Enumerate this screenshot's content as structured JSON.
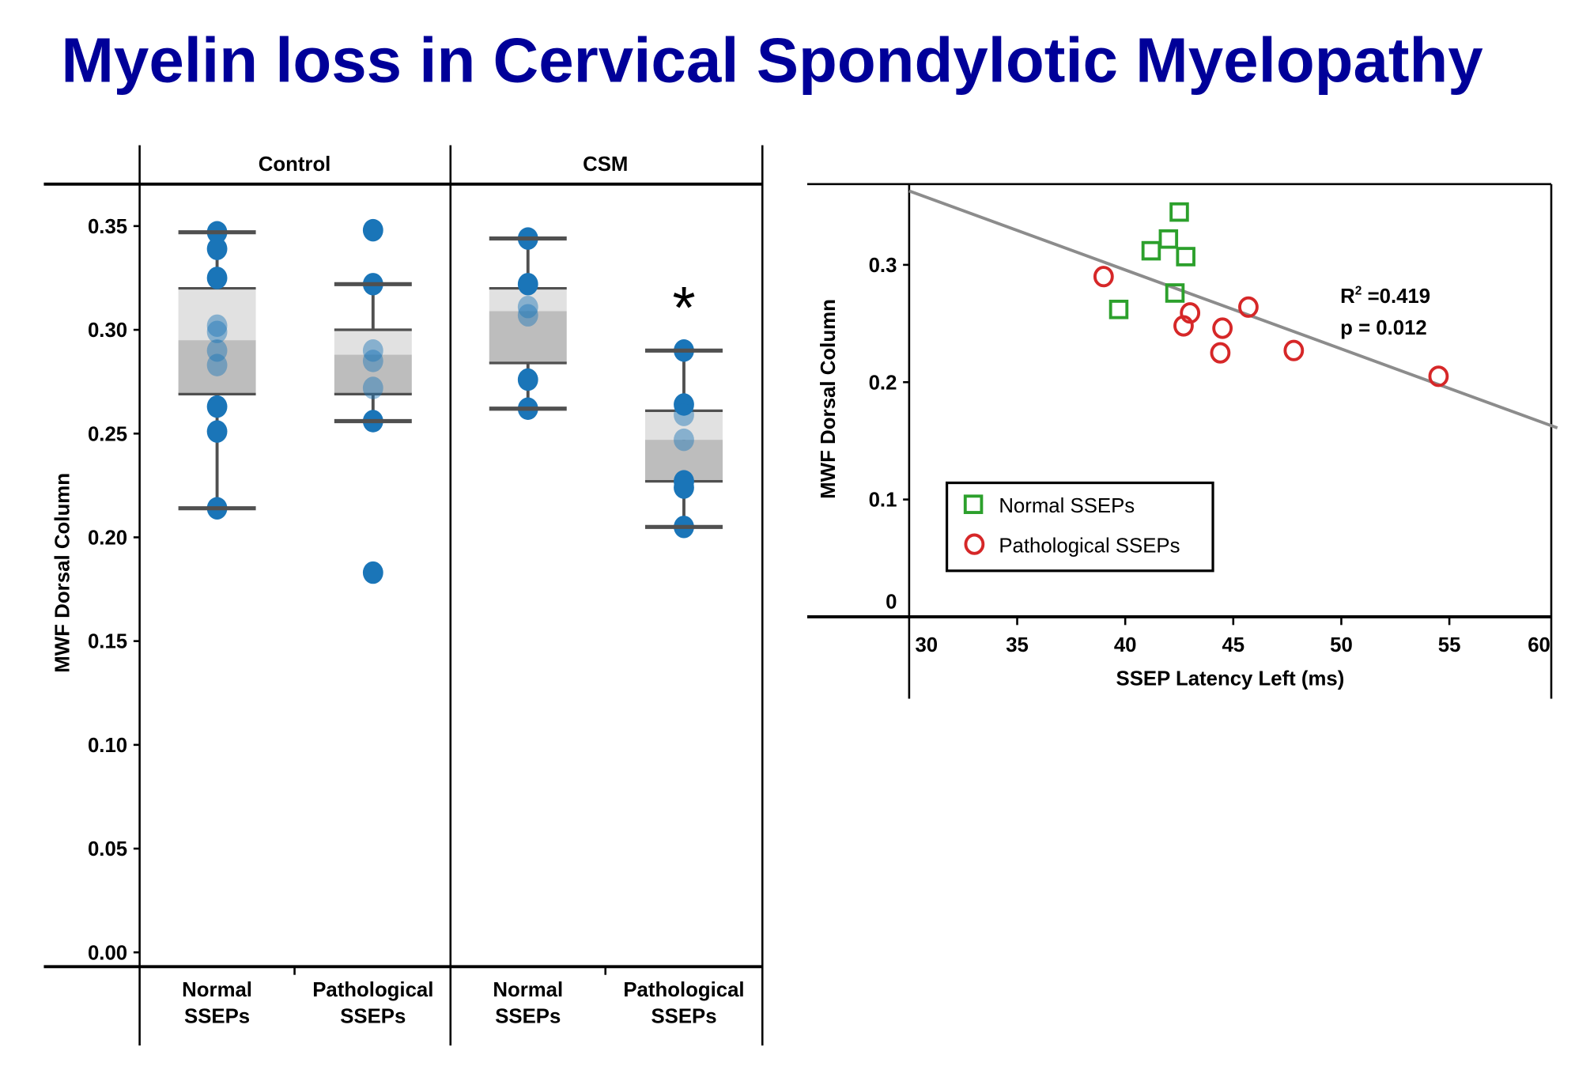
{
  "title": "Myelin loss in Cervical Spondylotic Myelopathy",
  "chart_data": [
    {
      "type": "box",
      "ylabel": "MWF Dorsal Column",
      "ylim": [
        0,
        0.35
      ],
      "yticks": [
        "0.00",
        "0.05",
        "0.10",
        "0.15",
        "0.20",
        "0.25",
        "0.30",
        "0.35"
      ],
      "panels": [
        "Control",
        "CSM"
      ],
      "categories": [
        {
          "panel": "Control",
          "label1": "Normal",
          "label2": "SSEPs",
          "whisker_low": 0.214,
          "q1": 0.269,
          "median": 0.295,
          "q3": 0.32,
          "whisker_high": 0.347,
          "points": [
            0.347,
            0.339,
            0.325,
            0.302,
            0.299,
            0.29,
            0.283,
            0.263,
            0.251,
            0.214
          ]
        },
        {
          "panel": "Control",
          "label1": "Pathological",
          "label2": "SSEPs",
          "whisker_low": 0.256,
          "q1": 0.269,
          "median": 0.288,
          "q3": 0.3,
          "whisker_high": 0.322,
          "points": [
            0.348,
            0.322,
            0.29,
            0.285,
            0.272,
            0.256,
            0.183
          ]
        },
        {
          "panel": "CSM",
          "label1": "Normal",
          "label2": "SSEPs",
          "whisker_low": 0.262,
          "q1": 0.284,
          "median": 0.309,
          "q3": 0.32,
          "whisker_high": 0.344,
          "points": [
            0.344,
            0.322,
            0.311,
            0.307,
            0.276,
            0.262
          ]
        },
        {
          "panel": "CSM",
          "label1": "Pathological",
          "label2": "SSEPs",
          "whisker_low": 0.205,
          "q1": 0.227,
          "median": 0.247,
          "q3": 0.261,
          "whisker_high": 0.29,
          "points": [
            0.29,
            0.264,
            0.259,
            0.247,
            0.227,
            0.224,
            0.205
          ],
          "annotation": "*"
        }
      ],
      "colors": {
        "point": "#1a75b8",
        "box_light": "#e1e1e1",
        "box_dark": "#bdbdbd",
        "whisker": "#505050"
      }
    },
    {
      "type": "scatter",
      "xlabel": "SSEP Latency Left (ms)",
      "ylabel": "MWF Dorsal Column",
      "xlim": [
        30,
        60
      ],
      "ylim": [
        0,
        0.37
      ],
      "xticks": [
        "30",
        "35",
        "40",
        "45",
        "50",
        "55",
        "60"
      ],
      "yticks": [
        "0",
        "0.1",
        "0.2",
        "0.3"
      ],
      "series": [
        {
          "name": "Normal SSEPs",
          "marker": "square",
          "color": "#2ca02c",
          "points": [
            [
              42.5,
              0.345
            ],
            [
              42.0,
              0.322
            ],
            [
              41.2,
              0.312
            ],
            [
              42.8,
              0.307
            ],
            [
              42.3,
              0.276
            ],
            [
              39.7,
              0.262
            ]
          ]
        },
        {
          "name": "Pathological SSEPs",
          "marker": "circle",
          "color": "#d62728",
          "points": [
            [
              39.0,
              0.29
            ],
            [
              43.0,
              0.259
            ],
            [
              42.7,
              0.248
            ],
            [
              45.7,
              0.264
            ],
            [
              44.5,
              0.246
            ],
            [
              44.4,
              0.225
            ],
            [
              47.8,
              0.227
            ],
            [
              54.5,
              0.205
            ]
          ]
        }
      ],
      "fit_line": {
        "x": [
          30,
          60
        ],
        "y": [
          0.363,
          0.161
        ],
        "color": "#8c8c8c"
      },
      "stats": {
        "r2_label": "R",
        "r2_sup": "2",
        "r2_value": " =0.419",
        "p": "p = 0.012"
      },
      "legend": "bottom-left"
    }
  ]
}
